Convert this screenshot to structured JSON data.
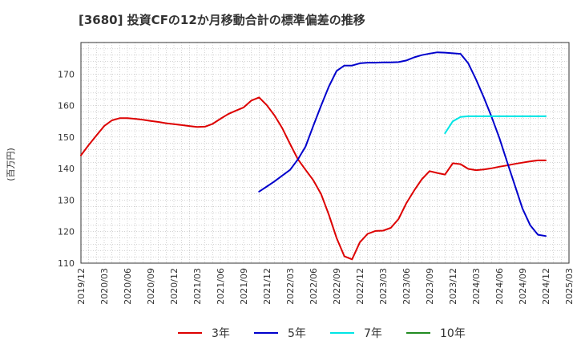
{
  "chart_data": {
    "type": "line",
    "title": "[3680]  投資CFの12か月移動合計の標準偏差の推移",
    "ylabel": "(百万円)",
    "xlabel": "",
    "ylim": [
      110,
      180
    ],
    "yticks": [
      110,
      120,
      130,
      140,
      150,
      160,
      170
    ],
    "xlim": [
      "2019-12",
      "2025-03"
    ],
    "xticks": [
      "2019/12",
      "2020/03",
      "2020/06",
      "2020/09",
      "2020/12",
      "2021/03",
      "2021/06",
      "2021/09",
      "2021/12",
      "2022/03",
      "2022/06",
      "2022/09",
      "2022/12",
      "2023/03",
      "2023/06",
      "2023/09",
      "2023/12",
      "2024/03",
      "2024/06",
      "2024/09",
      "2024/12",
      "2025/03"
    ],
    "grid": true,
    "legend_position": "bottom",
    "series": [
      {
        "name": "3年",
        "color": "#dd0000",
        "points": [
          [
            "2019-12",
            144.2
          ],
          [
            "2020-01",
            147.5
          ],
          [
            "2020-02",
            150.5
          ],
          [
            "2020-03",
            153.5
          ],
          [
            "2020-04",
            155.3
          ],
          [
            "2020-05",
            156.0
          ],
          [
            "2020-06",
            156.0
          ],
          [
            "2020-07",
            155.8
          ],
          [
            "2020-08",
            155.5
          ],
          [
            "2020-09",
            155.1
          ],
          [
            "2020-10",
            154.8
          ],
          [
            "2020-11",
            154.4
          ],
          [
            "2020-12",
            154.1
          ],
          [
            "2021-01",
            153.8
          ],
          [
            "2021-02",
            153.5
          ],
          [
            "2021-03",
            153.2
          ],
          [
            "2021-04",
            153.3
          ],
          [
            "2021-05",
            154.2
          ],
          [
            "2021-06",
            155.8
          ],
          [
            "2021-07",
            157.3
          ],
          [
            "2021-08",
            158.4
          ],
          [
            "2021-09",
            159.4
          ],
          [
            "2021-10",
            161.6
          ],
          [
            "2021-11",
            162.6
          ],
          [
            "2021-12",
            160.1
          ],
          [
            "2022-01",
            156.8
          ],
          [
            "2022-02",
            152.8
          ],
          [
            "2022-03",
            147.8
          ],
          [
            "2022-04",
            143.0
          ],
          [
            "2022-05",
            139.6
          ],
          [
            "2022-06",
            136.3
          ],
          [
            "2022-07",
            131.9
          ],
          [
            "2022-08",
            125.4
          ],
          [
            "2022-09",
            118.0
          ],
          [
            "2022-10",
            112.2
          ],
          [
            "2022-11",
            111.2
          ],
          [
            "2022-12",
            116.6
          ],
          [
            "2023-01",
            119.3
          ],
          [
            "2023-02",
            120.2
          ],
          [
            "2023-03",
            120.3
          ],
          [
            "2023-04",
            121.2
          ],
          [
            "2023-05",
            124.0
          ],
          [
            "2023-06",
            129.0
          ],
          [
            "2023-07",
            133.0
          ],
          [
            "2023-08",
            136.6
          ],
          [
            "2023-09",
            139.2
          ],
          [
            "2023-10",
            138.6
          ],
          [
            "2023-11",
            138.1
          ],
          [
            "2023-12",
            141.7
          ],
          [
            "2024-01",
            141.4
          ],
          [
            "2024-02",
            139.9
          ],
          [
            "2024-03",
            139.5
          ],
          [
            "2024-04",
            139.7
          ],
          [
            "2024-05",
            140.1
          ],
          [
            "2024-06",
            140.6
          ],
          [
            "2024-07",
            141.0
          ],
          [
            "2024-08",
            141.5
          ],
          [
            "2024-09",
            141.9
          ],
          [
            "2024-10",
            142.3
          ],
          [
            "2024-11",
            142.6
          ],
          [
            "2024-12",
            142.6
          ]
        ]
      },
      {
        "name": "5年",
        "color": "#0000cc",
        "points": [
          [
            "2021-11",
            132.7
          ],
          [
            "2021-12",
            134.3
          ],
          [
            "2022-01",
            136.0
          ],
          [
            "2022-02",
            137.8
          ],
          [
            "2022-03",
            139.6
          ],
          [
            "2022-04",
            142.9
          ],
          [
            "2022-05",
            147.0
          ],
          [
            "2022-06",
            153.6
          ],
          [
            "2022-07",
            160.0
          ],
          [
            "2022-08",
            166.0
          ],
          [
            "2022-09",
            171.0
          ],
          [
            "2022-10",
            172.7
          ],
          [
            "2022-11",
            172.7
          ],
          [
            "2022-12",
            173.4
          ],
          [
            "2023-01",
            173.6
          ],
          [
            "2023-02",
            173.6
          ],
          [
            "2023-03",
            173.7
          ],
          [
            "2023-04",
            173.7
          ],
          [
            "2023-05",
            173.8
          ],
          [
            "2023-06",
            174.3
          ],
          [
            "2023-07",
            175.3
          ],
          [
            "2023-08",
            176.0
          ],
          [
            "2023-09",
            176.5
          ],
          [
            "2023-10",
            176.9
          ],
          [
            "2023-11",
            176.8
          ],
          [
            "2023-12",
            176.6
          ],
          [
            "2024-01",
            176.4
          ],
          [
            "2024-02",
            173.4
          ],
          [
            "2024-03",
            168.3
          ],
          [
            "2024-04",
            162.6
          ],
          [
            "2024-05",
            156.5
          ],
          [
            "2024-06",
            149.8
          ],
          [
            "2024-07",
            142.2
          ],
          [
            "2024-08",
            134.8
          ],
          [
            "2024-09",
            127.3
          ],
          [
            "2024-10",
            122.0
          ],
          [
            "2024-11",
            119.0
          ],
          [
            "2024-12",
            118.6
          ]
        ]
      },
      {
        "name": "7年",
        "color": "#00e5e5",
        "points": [
          [
            "2023-11",
            151.2
          ],
          [
            "2023-12",
            155.0
          ],
          [
            "2024-01",
            156.4
          ],
          [
            "2024-02",
            156.6
          ],
          [
            "2024-03",
            156.6
          ],
          [
            "2024-04",
            156.6
          ],
          [
            "2024-05",
            156.6
          ],
          [
            "2024-06",
            156.6
          ],
          [
            "2024-07",
            156.6
          ],
          [
            "2024-08",
            156.6
          ],
          [
            "2024-09",
            156.6
          ],
          [
            "2024-10",
            156.6
          ],
          [
            "2024-11",
            156.6
          ],
          [
            "2024-12",
            156.6
          ]
        ]
      },
      {
        "name": "10年",
        "color": "#228b22",
        "points": []
      }
    ]
  }
}
